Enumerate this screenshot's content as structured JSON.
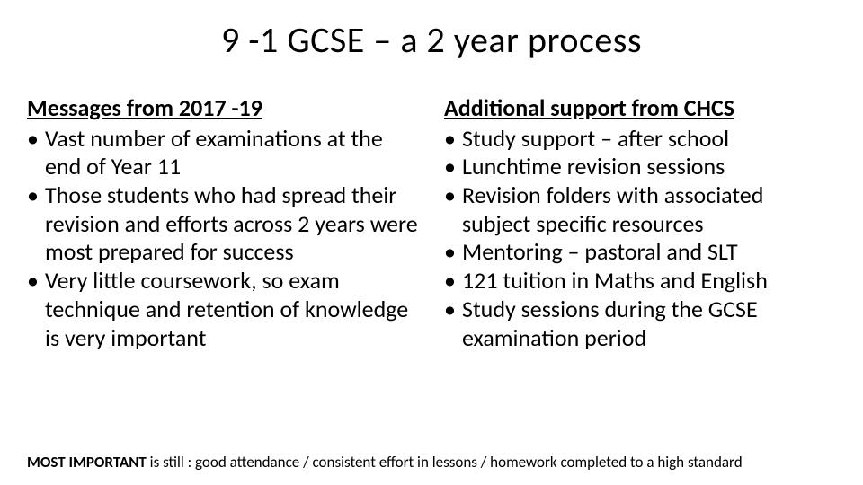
{
  "title": "9 -1 GCSE – a 2 year process",
  "left": {
    "heading": "Messages from 2017 -19",
    "bullets": [
      "Vast number of examinations at the end of Year 11",
      "Those students who had spread their revision and efforts across 2 years were most prepared for success",
      "Very little coursework, so exam technique and retention of knowledge is very important"
    ]
  },
  "right": {
    "heading": "Additional support from CHCS",
    "bullets": [
      "Study support – after school",
      "Lunchtime revision sessions",
      "Revision folders with associated subject specific resources",
      "Mentoring – pastoral and SLT",
      "121 tuition in Maths and English",
      "Study sessions during the GCSE examination period"
    ]
  },
  "footer": {
    "strong": "MOST IMPORTANT",
    "rest": " is still : good attendance / consistent effort in lessons / homework completed to a high standard"
  },
  "colors": {
    "background": "#ffffff",
    "text": "#000000"
  },
  "typography": {
    "title_fontsize": 40,
    "title_weight": 300,
    "heading_fontsize": 26,
    "heading_weight": 700,
    "body_fontsize": 26,
    "footer_fontsize": 17
  }
}
